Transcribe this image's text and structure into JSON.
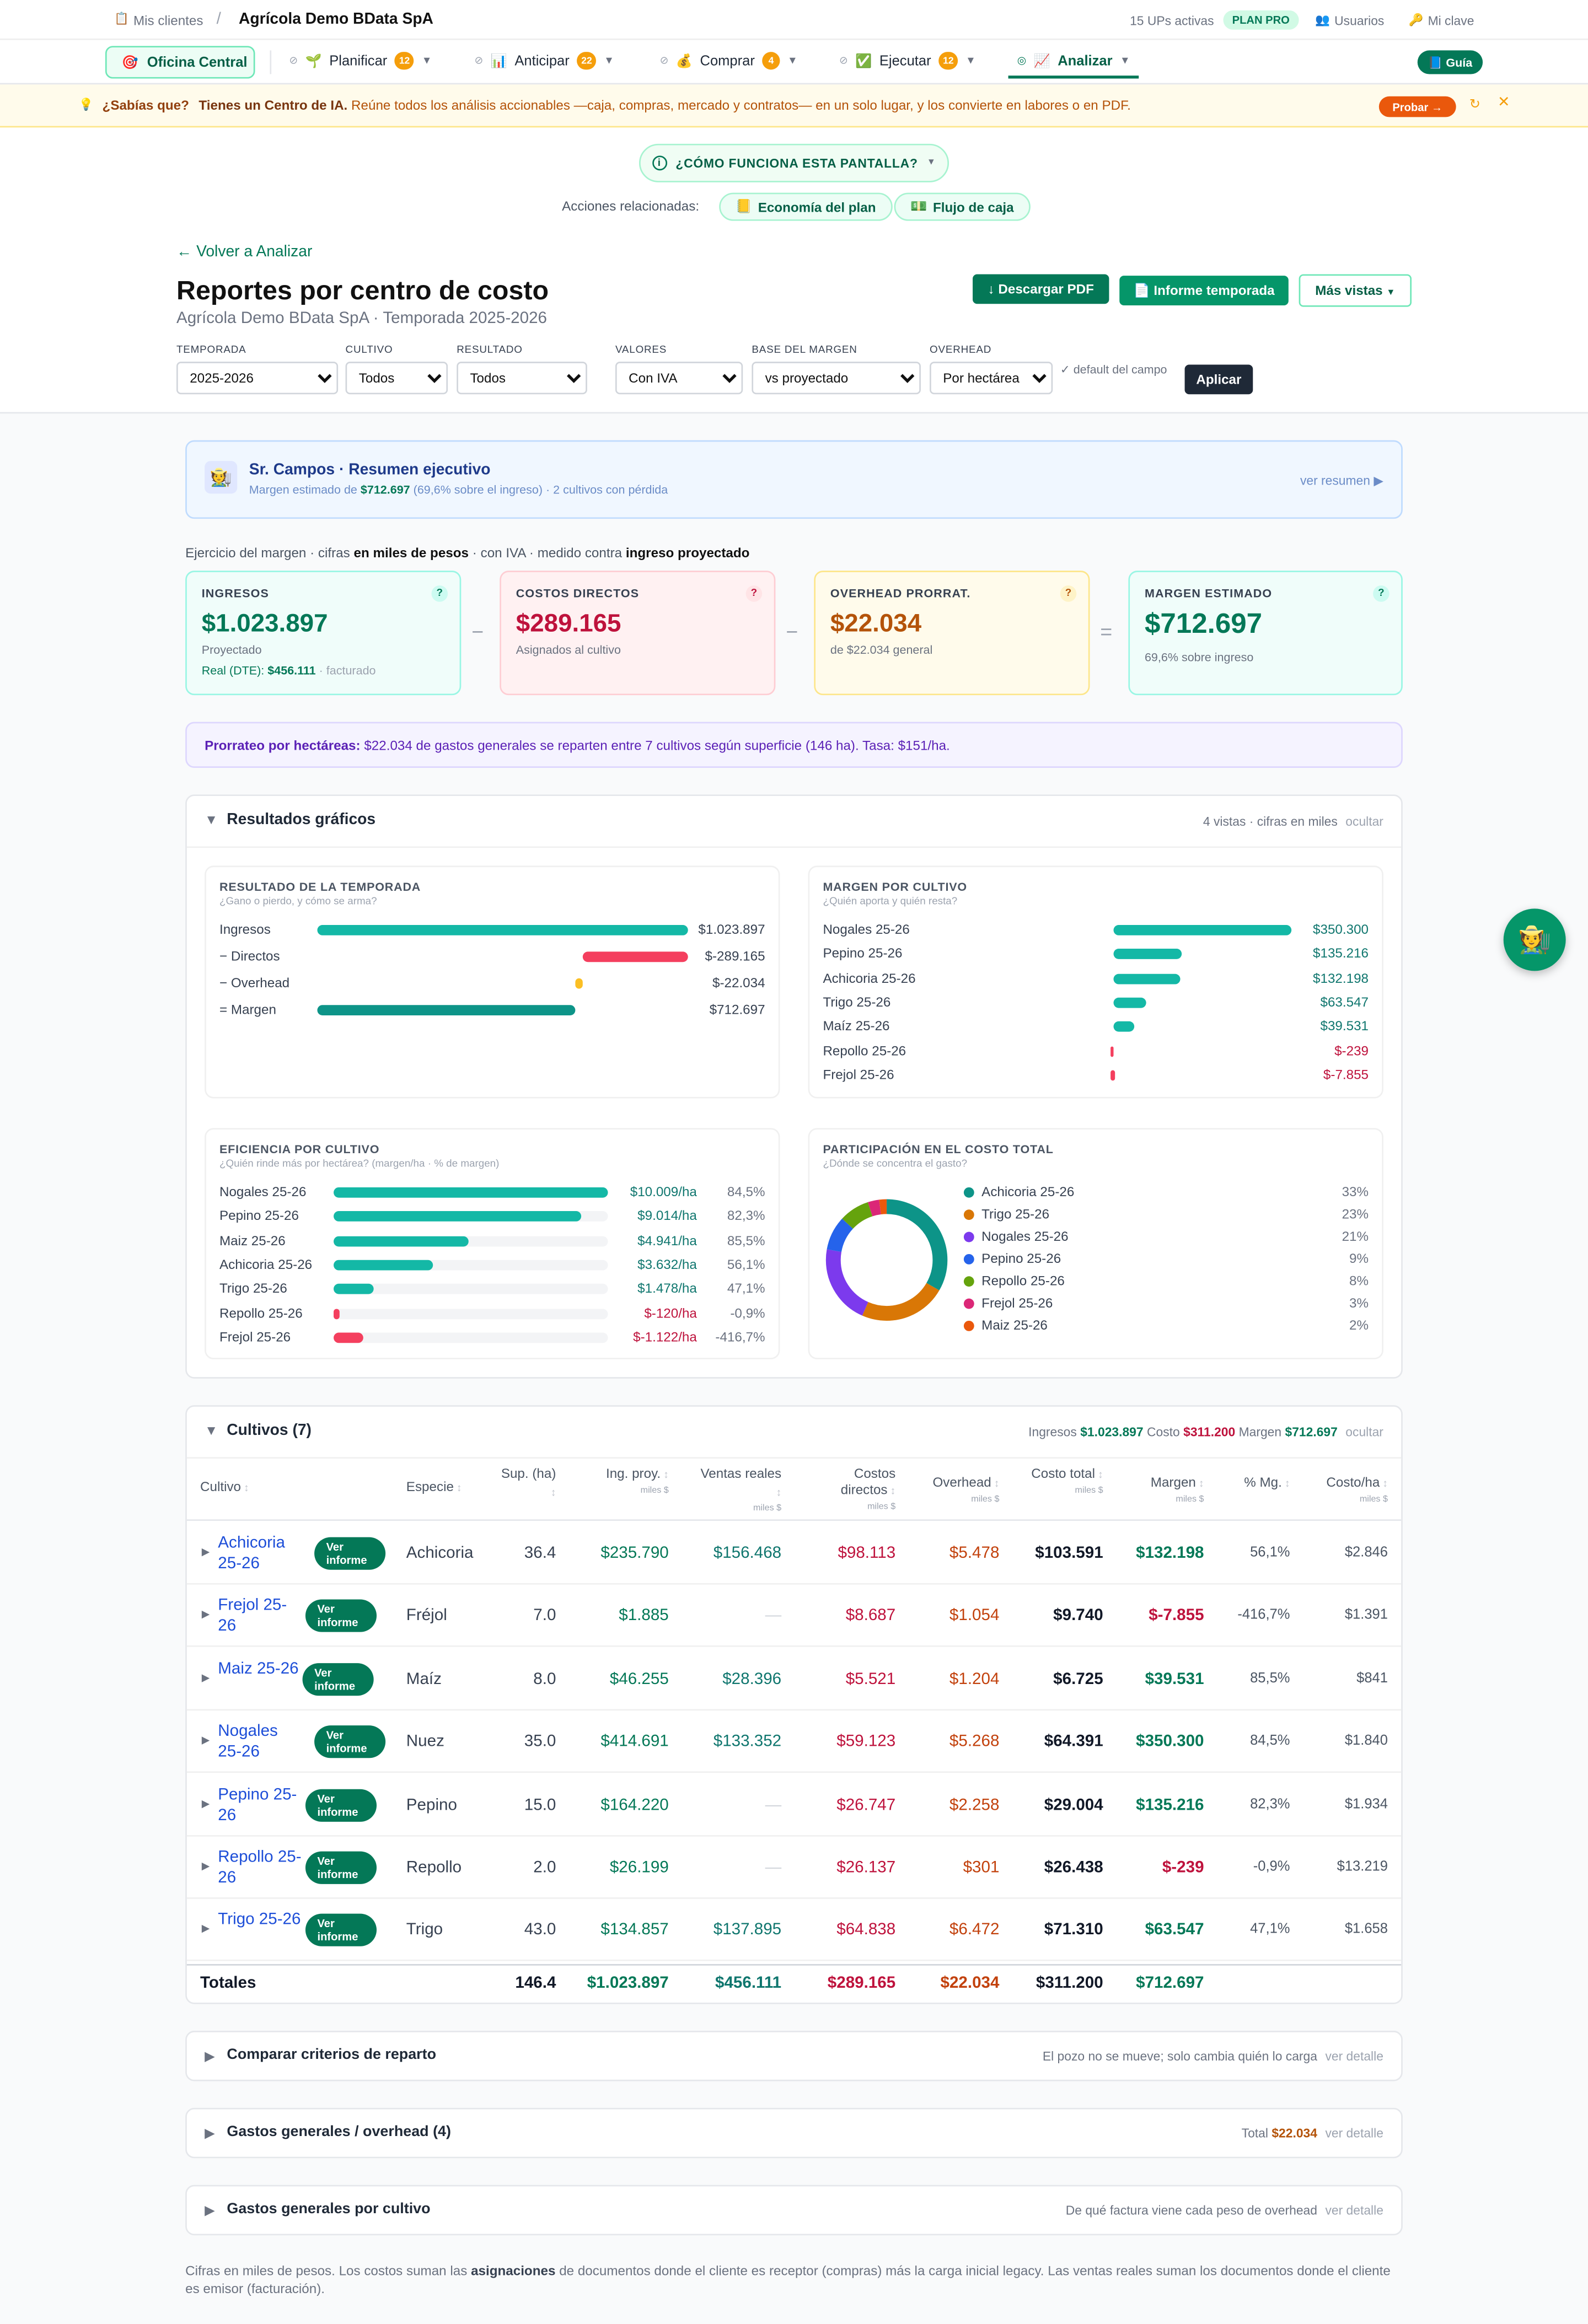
{
  "topbar": {
    "crumb_icon": "clipboard-icon",
    "crumb": "Mis clientes",
    "sep": "/",
    "company": "Agrícola Demo BData SpA",
    "ups": "15 UPs activas",
    "plan": "PLAN PRO",
    "users": "Usuarios",
    "password": "Mi clave"
  },
  "nav": {
    "home": "Oficina Central",
    "items": [
      {
        "label": "Planificar",
        "badge": "12",
        "icon": "seedling-icon"
      },
      {
        "label": "Anticipar",
        "badge": "22",
        "icon": "bar-chart-icon"
      },
      {
        "label": "Comprar",
        "badge": "4",
        "icon": "money-bag-icon"
      },
      {
        "label": "Ejecutar",
        "badge": "12",
        "icon": "check-box-icon"
      },
      {
        "label": "Analizar",
        "badge": "",
        "icon": "line-chart-icon"
      }
    ],
    "guide": "Guía"
  },
  "tip": {
    "q": "¿Sabías que?",
    "bold": "Tienes un Centro de IA.",
    "text": "Reúne todos los análisis accionables —caja, compras, mercado y contratos— en un solo lugar, y los convierte en labores o en PDF.",
    "cta": "Probar →"
  },
  "how": "¿CÓMO FUNCIONA ESTA PANTALLA?",
  "related": {
    "label": "Acciones relacionadas:",
    "a": "Economía del plan",
    "b": "Flujo de caja"
  },
  "back": "← Volver a Analizar",
  "title": "Reportes por centro de costo",
  "subtitle": "Agrícola Demo BData SpA · Temporada 2025-2026",
  "actions": {
    "pdf": "Descargar PDF",
    "informe": "Informe temporada",
    "more": "Más vistas"
  },
  "filters": {
    "temporada": {
      "label": "TEMPORADA",
      "value": "2025-2026"
    },
    "cultivo": {
      "label": "CULTIVO",
      "value": "Todos"
    },
    "resultado": {
      "label": "RESULTADO",
      "value": "Todos"
    },
    "valores": {
      "label": "VALORES",
      "value": "Con IVA"
    },
    "base": {
      "label": "BASE DEL MARGEN",
      "value": "vs proyectado"
    },
    "overhead": {
      "label": "OVERHEAD",
      "value": "Por hectárea"
    },
    "default_note": "✓ default del campo",
    "apply": "Aplicar"
  },
  "summary": {
    "title": "Sr. Campos · Resumen ejecutivo",
    "line_a": "Margen estimado de",
    "margin": "$712.697",
    "line_b": "(69,6% sobre el ingreso) · 2 cultivos con pérdida",
    "link": "ver resumen ▶"
  },
  "exercise": {
    "a": "Ejercicio del margen · cifras",
    "b": "en miles de pesos",
    "c": "· con IVA · medido contra",
    "d": "ingreso proyectado"
  },
  "kpis": {
    "ingresos": {
      "title": "INGRESOS",
      "value": "$1.023.897",
      "sub": "Proyectado",
      "real_label": "Real (DTE):",
      "real": "$456.111",
      "real_note": "· facturado"
    },
    "costos": {
      "title": "COSTOS DIRECTOS",
      "value": "$289.165",
      "sub": "Asignados al cultivo"
    },
    "overhead": {
      "title": "OVERHEAD PRORRAT.",
      "value": "$22.034",
      "sub": "de $22.034 general"
    },
    "margen": {
      "title": "MARGEN ESTIMADO",
      "value": "$712.697",
      "sub": "69,6% sobre ingreso"
    },
    "ops": [
      "−",
      "−",
      "="
    ]
  },
  "prorrateo": {
    "bold": "Prorrateo por hectáreas:",
    "text": "$22.034 de gastos generales se reparten entre 7 cultivos según superficie (146 ha). Tasa: $151/ha."
  },
  "graficos": {
    "title": "Resultados gráficos",
    "meta": "4 vistas · cifras en miles",
    "hide": "ocultar"
  },
  "chart_data": [
    {
      "type": "bar",
      "title": "RESULTADO DE LA TEMPORADA",
      "subtitle": "¿Gano o pierdo, y cómo se arma?",
      "categories": [
        "Ingresos",
        "− Directos",
        "− Overhead",
        "= Margen"
      ],
      "values": [
        1023897,
        -289165,
        -22034,
        712697
      ],
      "labels": [
        "$1.023.897",
        "$-289.165",
        "$-22.034",
        "$712.697"
      ],
      "colors": [
        "#14b8a6",
        "#f43f5e",
        "#fbbf24",
        "#0d9488"
      ]
    },
    {
      "type": "bar",
      "title": "MARGEN POR CULTIVO",
      "subtitle": "¿Quién aporta y quién resta?",
      "categories": [
        "Nogales 25-26",
        "Pepino 25-26",
        "Achicoria 25-26",
        "Trigo 25-26",
        "Maíz 25-26",
        "Repollo 25-26",
        "Frejol 25-26"
      ],
      "values": [
        350300,
        135216,
        132198,
        63547,
        39531,
        -239,
        -7855
      ],
      "labels": [
        "$350.300",
        "$135.216",
        "$132.198",
        "$63.547",
        "$39.531",
        "$-239",
        "$-7.855"
      ]
    },
    {
      "type": "bar",
      "title": "EFICIENCIA POR CULTIVO",
      "subtitle": "¿Quién rinde más por hectárea? (margen/ha · % de margen)",
      "categories": [
        "Nogales 25-26",
        "Pepino 25-26",
        "Maiz 25-26",
        "Achicoria 25-26",
        "Trigo 25-26",
        "Repollo 25-26",
        "Frejol 25-26"
      ],
      "values": [
        10009,
        9014,
        4941,
        3632,
        1478,
        -120,
        -1122
      ],
      "labels": [
        "$10.009/ha",
        "$9.014/ha",
        "$4.941/ha",
        "$3.632/ha",
        "$1.478/ha",
        "$-120/ha",
        "$-1.122/ha"
      ],
      "pct": [
        "84,5%",
        "82,3%",
        "85,5%",
        "56,1%",
        "47,1%",
        "-0,9%",
        "-416,7%"
      ]
    },
    {
      "type": "pie",
      "title": "PARTICIPACIÓN EN EL COSTO TOTAL",
      "subtitle": "¿Dónde se concentra el gasto?",
      "categories": [
        "Achicoria 25-26",
        "Trigo 25-26",
        "Nogales 25-26",
        "Pepino 25-26",
        "Repollo 25-26",
        "Frejol 25-26",
        "Maiz 25-26"
      ],
      "values": [
        33,
        23,
        21,
        9,
        8,
        3,
        2
      ],
      "labels": [
        "33%",
        "23%",
        "21%",
        "9%",
        "8%",
        "3%",
        "2%"
      ],
      "colors": [
        "#0d9488",
        "#d97706",
        "#7c3aed",
        "#2563eb",
        "#65a30d",
        "#db2777",
        "#ea580c"
      ]
    }
  ],
  "cultivos": {
    "title": "Cultivos (7)",
    "ing_label": "Ingresos",
    "ing": "$1.023.897",
    "cost_label": "Costo",
    "cost": "$311.200",
    "mar_label": "Margen",
    "mar": "$712.697",
    "hide": "ocultar",
    "view_btn": "Ver informe",
    "headers": [
      {
        "t": "Cultivo",
        "u": ""
      },
      {
        "t": "Especie",
        "u": ""
      },
      {
        "t": "Sup. (ha)",
        "u": ""
      },
      {
        "t": "Ing. proy.",
        "u": "miles $"
      },
      {
        "t": "Ventas reales",
        "u": "miles $"
      },
      {
        "t": "Costos directos",
        "u": "miles $"
      },
      {
        "t": "Overhead",
        "u": "miles $"
      },
      {
        "t": "Costo total",
        "u": "miles $"
      },
      {
        "t": "Margen",
        "u": "miles $"
      },
      {
        "t": "% Mg.",
        "u": ""
      },
      {
        "t": "Costo/ha",
        "u": "miles $"
      }
    ],
    "rows": [
      [
        "Achicoria 25-26",
        "Achicoria",
        "36.4",
        "$235.790",
        "$156.468",
        "$98.113",
        "$5.478",
        "$103.591",
        "$132.198",
        "56,1%",
        "$2.846"
      ],
      [
        "Frejol 25-26",
        "Fréjol",
        "7.0",
        "$1.885",
        "—",
        "$8.687",
        "$1.054",
        "$9.740",
        "$-7.855",
        "-416,7%",
        "$1.391"
      ],
      [
        "Maiz 25-26",
        "Maíz",
        "8.0",
        "$46.255",
        "$28.396",
        "$5.521",
        "$1.204",
        "$6.725",
        "$39.531",
        "85,5%",
        "$841"
      ],
      [
        "Nogales 25-26",
        "Nuez",
        "35.0",
        "$414.691",
        "$133.352",
        "$59.123",
        "$5.268",
        "$64.391",
        "$350.300",
        "84,5%",
        "$1.840"
      ],
      [
        "Pepino 25-26",
        "Pepino",
        "15.0",
        "$164.220",
        "—",
        "$26.747",
        "$2.258",
        "$29.004",
        "$135.216",
        "82,3%",
        "$1.934"
      ],
      [
        "Repollo 25-26",
        "Repollo",
        "2.0",
        "$26.199",
        "—",
        "$26.137",
        "$301",
        "$26.438",
        "$-239",
        "-0,9%",
        "$13.219"
      ],
      [
        "Trigo 25-26",
        "Trigo",
        "43.0",
        "$134.857",
        "$137.895",
        "$64.838",
        "$6.472",
        "$71.310",
        "$63.547",
        "47,1%",
        "$1.658"
      ]
    ],
    "totals": [
      "Totales",
      "",
      "146.4",
      "$1.023.897",
      "$456.111",
      "$289.165",
      "$22.034",
      "$311.200",
      "$712.697",
      "",
      ""
    ]
  },
  "comparar": {
    "title": "Comparar criterios de reparto",
    "note": "El pozo no se mueve; solo cambia quién lo carga",
    "link": "ver detalle"
  },
  "gastos": {
    "title": "Gastos generales / overhead (4)",
    "note": "Total",
    "total": "$22.034",
    "link": "ver detalle"
  },
  "gastos_cultivo": {
    "title": "Gastos generales por cultivo",
    "note": "De qué factura viene cada peso de overhead",
    "link": "ver detalle"
  },
  "footer": {
    "a": "Cifras en miles de pesos. Los costos suman las",
    "b": "asignaciones",
    "c": "de documentos donde el cliente es receptor (compras) más la carga inicial legacy. Las ventas reales suman los documentos donde el cliente es emisor (facturación)."
  },
  "colors": {
    "accent": "#047857",
    "teal": "#14b8a6",
    "red": "#be123c",
    "orange": "#c2410c"
  }
}
